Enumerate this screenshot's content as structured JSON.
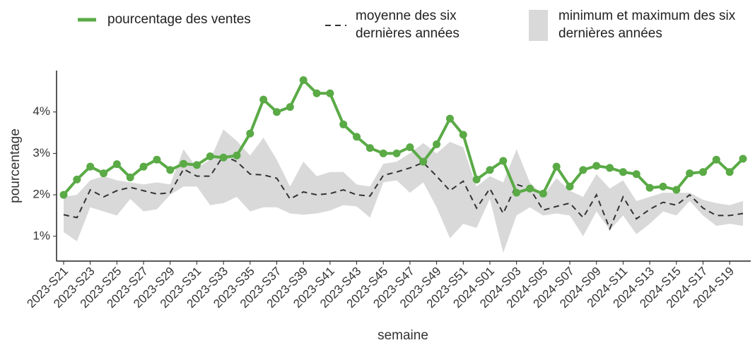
{
  "chart_data": {
    "type": "line",
    "xlabel": "semaine",
    "ylabel": "pourcentage",
    "categories": [
      "2023-S21",
      null,
      "2023-S23",
      null,
      "2023-S25",
      null,
      "2023-S27",
      null,
      "2023-S29",
      null,
      "2023-S31",
      null,
      "2023-S33",
      null,
      "2023-S35",
      null,
      "2023-S37",
      null,
      "2023-S39",
      null,
      "2023-S41",
      null,
      "2023-S43",
      null,
      "2023-S45",
      null,
      "2023-S47",
      null,
      "2023-S49",
      null,
      "2023-S51",
      null,
      "2024-S01",
      null,
      "2024-S03",
      null,
      "2024-S05",
      null,
      "2024-S07",
      null,
      "2024-S09",
      null,
      "2024-S11",
      null,
      "2024-S13",
      null,
      "2024-S15",
      null,
      "2024-S17",
      null,
      "2024-S19",
      null
    ],
    "ylim": [
      0.4,
      5.0
    ],
    "yticks": [
      {
        "value": 1,
        "label": "1%"
      },
      {
        "value": 2,
        "label": "2%"
      },
      {
        "value": 3,
        "label": "3%"
      },
      {
        "value": 4,
        "label": "4%"
      }
    ],
    "series": [
      {
        "name": "pourcentage des ventes",
        "color": "#5aaa46",
        "linestyle": "solid",
        "markers": true,
        "values": [
          2.0,
          2.37,
          2.68,
          2.52,
          2.74,
          2.42,
          2.68,
          2.85,
          2.6,
          2.75,
          2.72,
          2.93,
          2.9,
          2.95,
          3.48,
          4.3,
          4.0,
          4.12,
          4.77,
          4.45,
          4.45,
          3.7,
          3.4,
          3.13,
          3.0,
          3.0,
          3.15,
          2.8,
          3.22,
          3.84,
          3.45,
          2.37,
          2.6,
          2.82,
          2.05,
          2.15,
          2.03,
          2.68,
          2.2,
          2.6,
          2.7,
          2.65,
          2.55,
          2.5,
          2.17,
          2.2,
          2.12,
          2.52,
          2.55,
          2.85,
          2.55,
          2.87
        ]
      },
      {
        "name": "moyenne des six dernières années",
        "color": "#333333",
        "linestyle": "dashed",
        "markers": false,
        "values": [
          1.52,
          1.45,
          2.12,
          1.95,
          2.1,
          2.18,
          2.1,
          2.02,
          2.05,
          2.62,
          2.45,
          2.45,
          2.95,
          2.8,
          2.5,
          2.48,
          2.4,
          1.9,
          2.07,
          2.0,
          2.03,
          2.12,
          2.0,
          1.97,
          2.47,
          2.55,
          2.65,
          2.78,
          2.45,
          2.1,
          2.33,
          1.68,
          2.15,
          1.55,
          2.25,
          2.15,
          1.63,
          1.72,
          1.8,
          1.45,
          2.0,
          1.18,
          1.95,
          1.42,
          1.65,
          1.82,
          1.75,
          2.0,
          1.68,
          1.5,
          1.5,
          1.55
        ]
      }
    ],
    "band": {
      "name": "minimum et maximum des six dernières années",
      "color": "#d9d9d9",
      "high": [
        1.95,
        2.0,
        2.35,
        2.45,
        2.35,
        2.3,
        2.25,
        2.3,
        2.25,
        3.1,
        2.65,
        2.85,
        3.58,
        3.3,
        2.95,
        3.38,
        2.85,
        2.2,
        2.8,
        2.45,
        2.55,
        2.55,
        2.25,
        2.2,
        2.75,
        2.8,
        3.0,
        3.25,
        3.0,
        3.28,
        3.15,
        2.2,
        2.45,
        2.3,
        3.1,
        2.3,
        1.98,
        2.4,
        2.1,
        1.95,
        2.5,
        2.15,
        2.35,
        1.85,
        1.95,
        2.05,
        2.05,
        2.05,
        1.88,
        1.8,
        1.75,
        1.85
      ],
      "low": [
        1.1,
        0.88,
        1.7,
        1.6,
        1.5,
        1.9,
        1.6,
        1.65,
        2.0,
        2.2,
        2.2,
        1.75,
        1.8,
        1.95,
        1.6,
        1.7,
        1.7,
        1.55,
        1.52,
        1.55,
        1.62,
        1.75,
        1.72,
        1.45,
        2.3,
        2.35,
        2.05,
        2.3,
        1.7,
        0.95,
        1.3,
        1.2,
        1.9,
        0.6,
        1.5,
        1.7,
        1.5,
        1.55,
        1.5,
        1.0,
        1.6,
        1.15,
        1.5,
        1.05,
        1.3,
        1.6,
        1.5,
        1.85,
        1.5,
        1.25,
        1.3,
        1.25
      ]
    }
  }
}
